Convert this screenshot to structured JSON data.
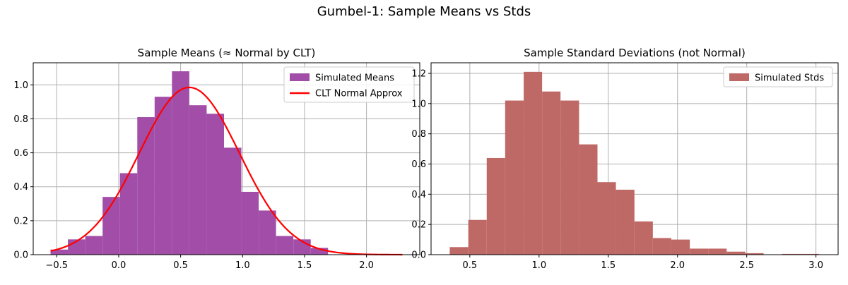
{
  "figure": {
    "title": "Gumbel-1: Sample Means vs Stds"
  },
  "chart_data": [
    {
      "type": "bar",
      "subtype": "histogram",
      "title": "Sample Means (≈ Normal by CLT)",
      "xlabel": "",
      "ylabel": "",
      "xlim": [
        -0.69,
        2.43
      ],
      "ylim": [
        0,
        1.13
      ],
      "xticks": [
        -0.5,
        0.0,
        0.5,
        1.0,
        1.5,
        2.0
      ],
      "xtick_labels": [
        "−0.5",
        "0.0",
        "0.5",
        "1.0",
        "1.5",
        "2.0"
      ],
      "yticks": [
        0.0,
        0.2,
        0.4,
        0.6,
        0.8,
        1.0
      ],
      "ytick_labels": [
        "0.0",
        "0.2",
        "0.4",
        "0.6",
        "0.8",
        "1.0"
      ],
      "grid": true,
      "legend_position": "top-right",
      "bin_edges": [
        -0.55,
        -0.41,
        -0.27,
        -0.13,
        0.01,
        0.15,
        0.29,
        0.43,
        0.57,
        0.71,
        0.85,
        0.99,
        1.13,
        1.27,
        1.41,
        1.55,
        1.69
      ],
      "series": [
        {
          "name": "Simulated Means",
          "kind": "histogram",
          "color": "#a24ea8",
          "values": [
            0.03,
            0.09,
            0.11,
            0.34,
            0.48,
            0.81,
            0.93,
            1.08,
            0.88,
            0.83,
            0.63,
            0.37,
            0.26,
            0.11,
            0.09,
            0.04
          ]
        },
        {
          "name": "CLT Normal Approx",
          "kind": "line",
          "color": "#ff0000",
          "mean": 0.57,
          "std": 0.405,
          "x_range": [
            -0.55,
            2.29
          ]
        }
      ]
    },
    {
      "type": "bar",
      "subtype": "histogram",
      "title": "Sample Standard Deviations (not Normal)",
      "xlabel": "",
      "ylabel": "",
      "xlim": [
        0.22,
        3.16
      ],
      "ylim": [
        0,
        1.27
      ],
      "xticks": [
        0.5,
        1.0,
        1.5,
        2.0,
        2.5,
        3.0
      ],
      "xtick_labels": [
        "0.5",
        "1.0",
        "1.5",
        "2.0",
        "2.5",
        "3.0"
      ],
      "yticks": [
        0.0,
        0.2,
        0.4,
        0.6,
        0.8,
        1.0,
        1.2
      ],
      "ytick_labels": [
        "0.0",
        "0.2",
        "0.4",
        "0.6",
        "0.8",
        "1.0",
        "1.2"
      ],
      "grid": true,
      "legend_position": "top-right",
      "bin_edges": [
        0.355,
        0.489,
        0.622,
        0.755,
        0.889,
        1.022,
        1.155,
        1.289,
        1.422,
        1.555,
        1.689,
        1.822,
        1.955,
        2.089,
        2.222,
        2.355,
        2.489,
        2.622,
        2.755,
        2.889,
        3.022
      ],
      "series": [
        {
          "name": "Simulated Stds",
          "kind": "histogram",
          "color": "#bf6966",
          "values": [
            0.05,
            0.23,
            0.64,
            1.02,
            1.21,
            1.08,
            1.02,
            0.73,
            0.48,
            0.43,
            0.22,
            0.11,
            0.1,
            0.04,
            0.04,
            0.02,
            0.01,
            0.0,
            0.005,
            0.005
          ]
        }
      ]
    }
  ]
}
